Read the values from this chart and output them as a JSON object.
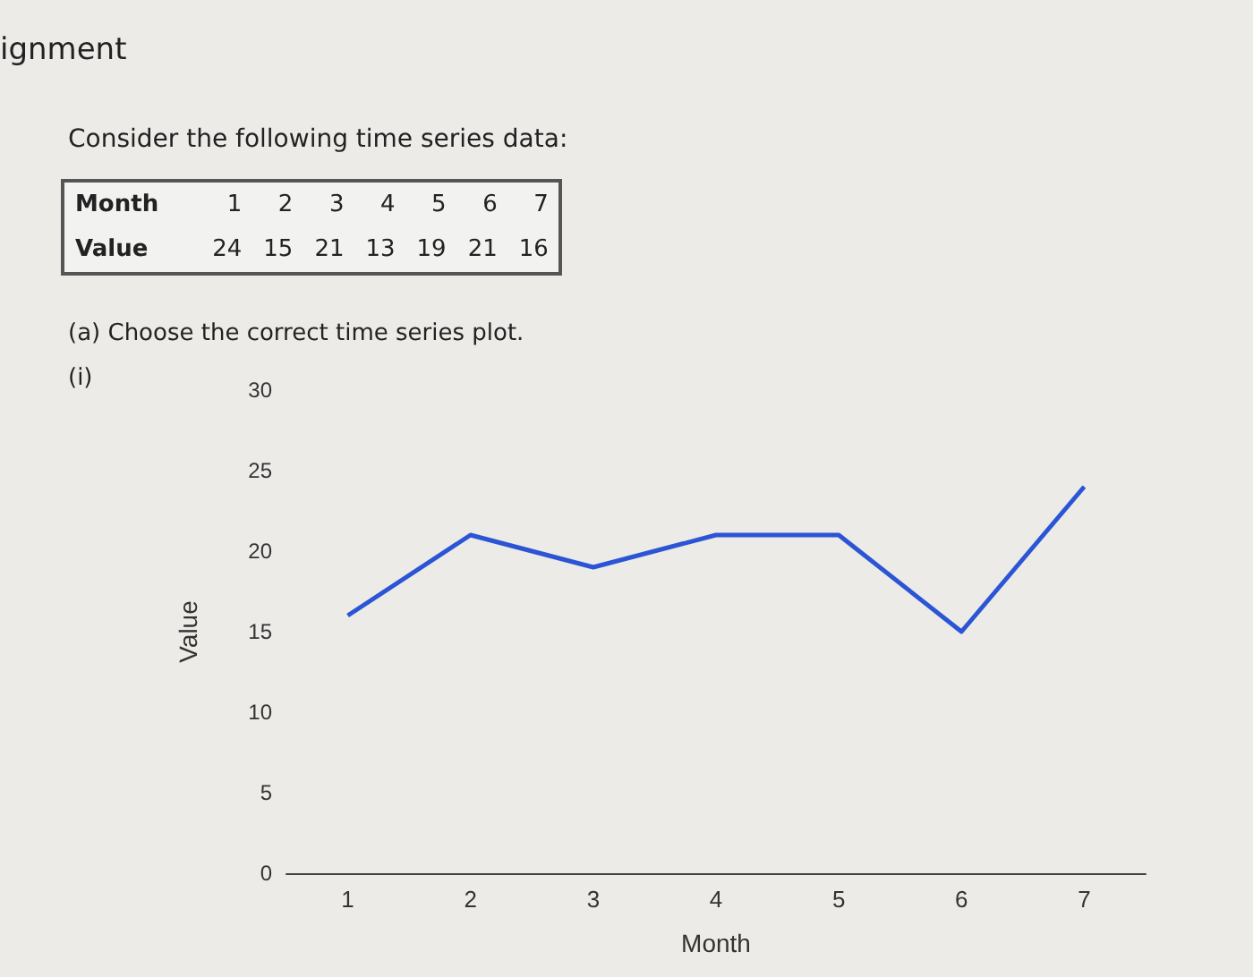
{
  "chart_data": {
    "type": "line",
    "xlabel": "Month",
    "ylabel": "Value",
    "annotations": [
      "ignment",
      "Consider the following time series data:",
      "Month 1 2 3 4 5 6 7",
      "Value 24 15 21 13 19 21 16",
      "(a) Choose the correct time series plot.",
      "(i)"
    ],
    "x": [
      1,
      2,
      3,
      4,
      5,
      6,
      7
    ],
    "series": [
      {
        "color": "#2b55d4",
        "values": [
          16,
          21,
          19,
          21,
          21,
          15,
          24
        ]
      }
    ],
    "xlim": [
      0.5,
      7.5
    ],
    "xticks": [
      1,
      2,
      3,
      4,
      5,
      6,
      7
    ],
    "ylim": [
      0,
      30
    ],
    "yticks": [
      0,
      5,
      10,
      15,
      20,
      25,
      30
    ],
    "grid": false,
    "marker": "none",
    "line_style": "solid"
  }
}
